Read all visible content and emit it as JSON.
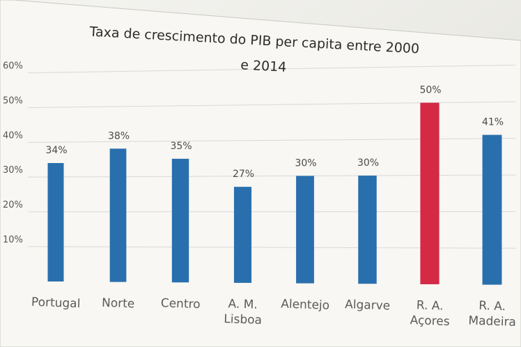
{
  "chart_data": {
    "type": "bar",
    "title_lines": [
      "Taxa de crescimento do PIB per capita entre 2000",
      "e 2014"
    ],
    "categories": [
      [
        "Portugal"
      ],
      [
        "Norte"
      ],
      [
        "Centro"
      ],
      [
        "A. M.",
        "Lisboa"
      ],
      [
        "Alentejo"
      ],
      [
        "Algarve"
      ],
      [
        "R. A.",
        "Açores"
      ],
      [
        "R. A.",
        "Madeira"
      ]
    ],
    "values": [
      34,
      38,
      35,
      27,
      30,
      30,
      50,
      41
    ],
    "data_labels": [
      "34%",
      "38%",
      "35%",
      "27%",
      "30%",
      "30%",
      "50%",
      "41%"
    ],
    "y_ticks": [
      "60%",
      "50%",
      "40%",
      "30%",
      "20%",
      "10%"
    ],
    "ylim": [
      0,
      60
    ],
    "grid": true,
    "colors": {
      "bar": "#2a6fad",
      "highlight": "#d42a45",
      "highlight_index": 6,
      "text": "#4a4a4a",
      "grid": "#d8d8d8",
      "panel": "#f7f6f2"
    }
  }
}
